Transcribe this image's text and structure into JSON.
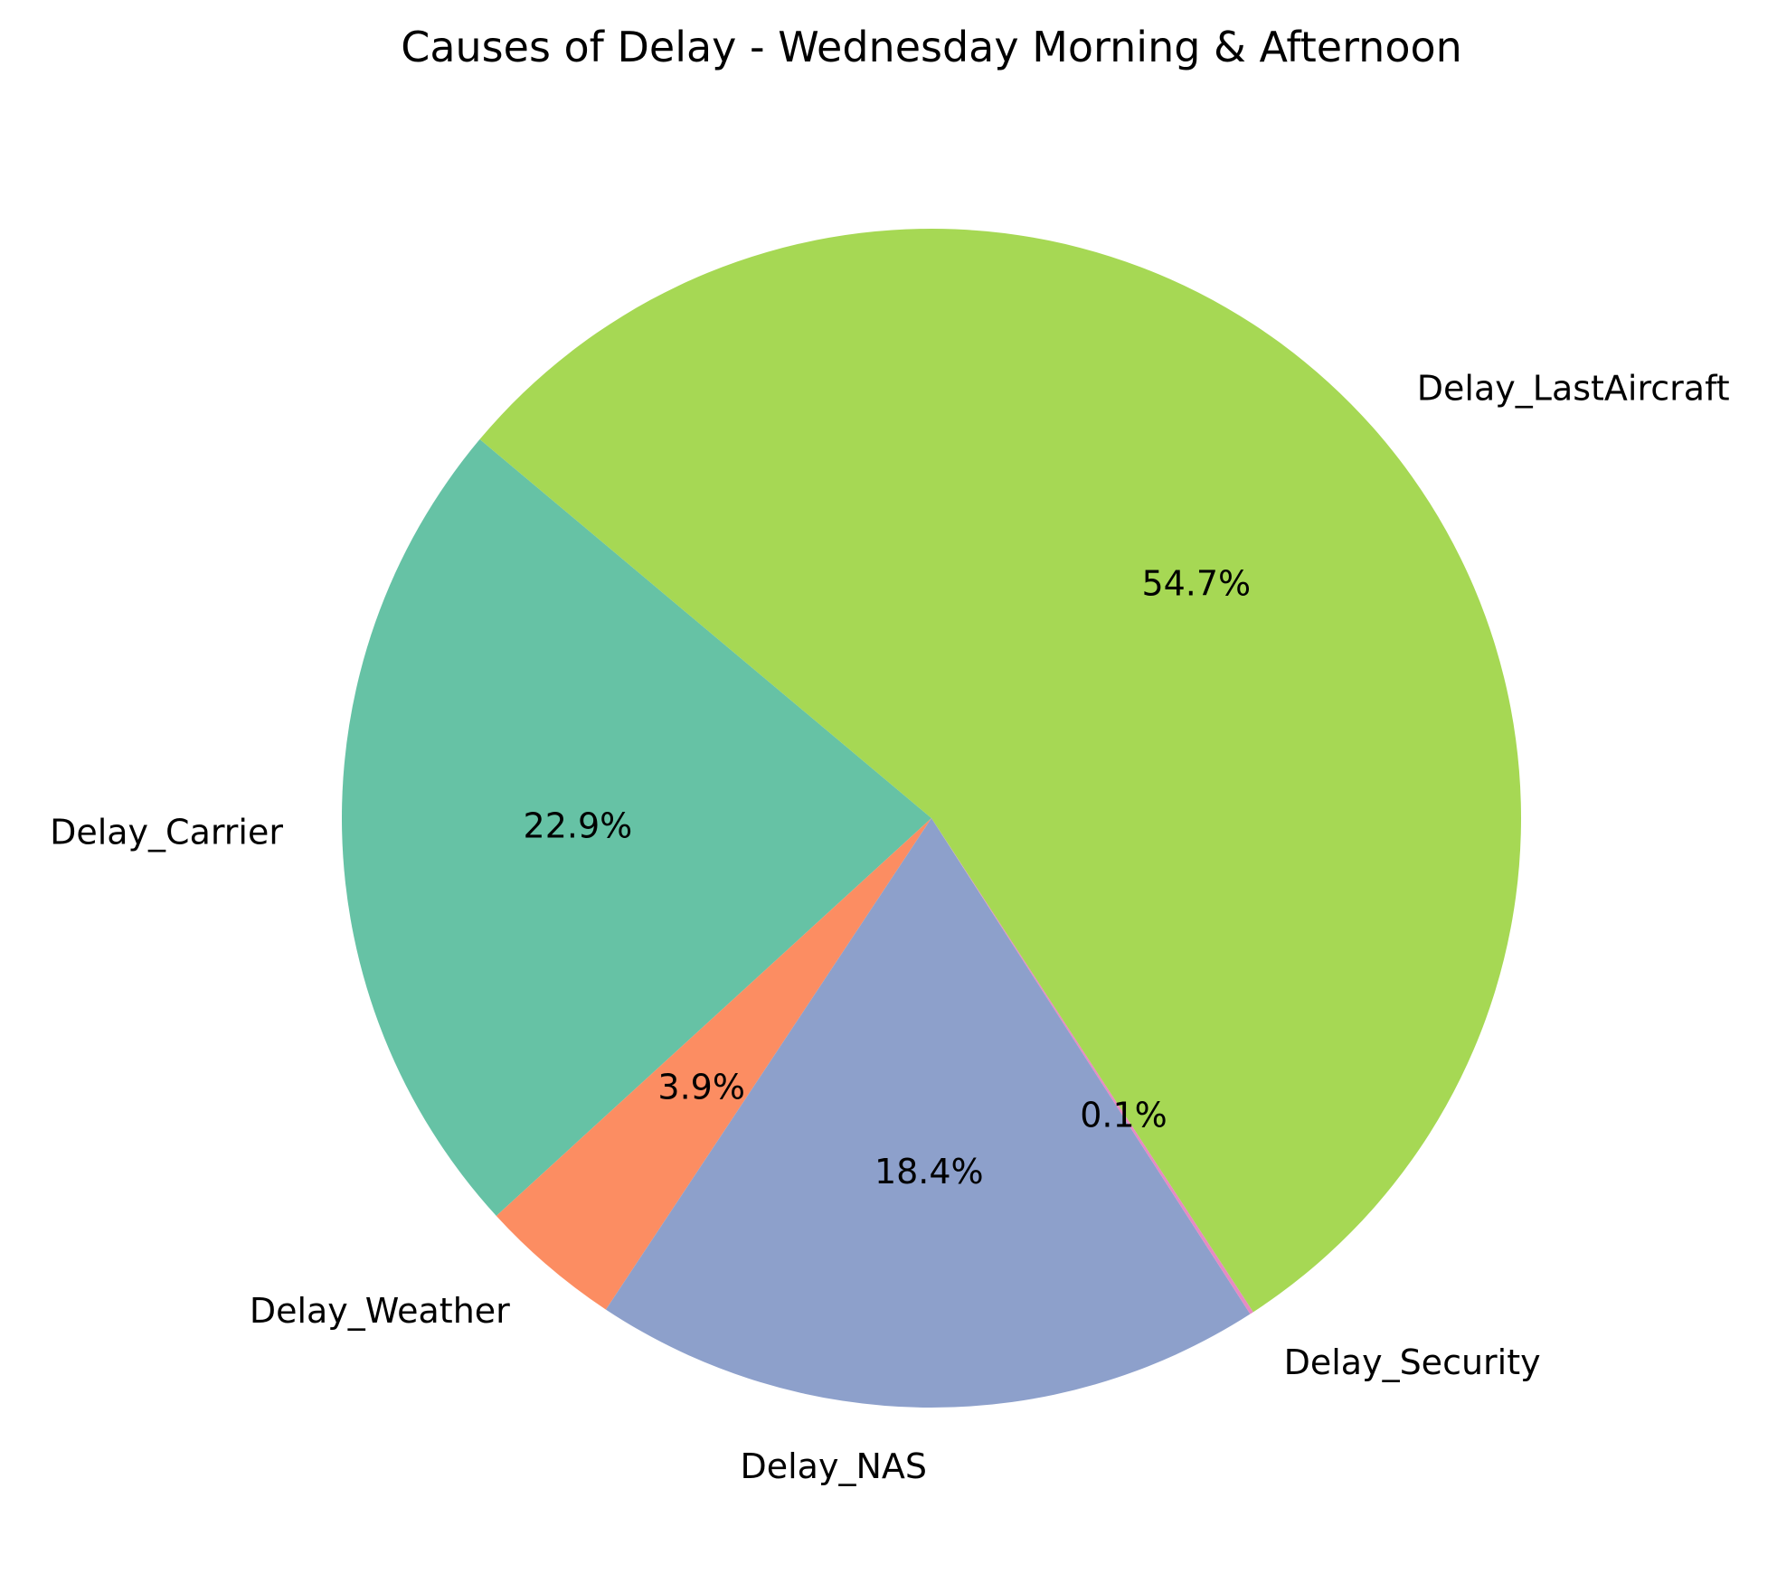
{
  "chart_data": {
    "type": "pie",
    "title": "Causes of Delay - Wednesday Morning & Afternoon",
    "categories": [
      "Delay_Carrier",
      "Delay_Weather",
      "Delay_NAS",
      "Delay_Security",
      "Delay_LastAircraft"
    ],
    "values": [
      22.9,
      3.9,
      18.4,
      0.1,
      54.7
    ],
    "value_labels": [
      "22.9%",
      "3.9%",
      "18.4%",
      "0.1%",
      "54.7%"
    ],
    "colors": [
      "#66c2a5",
      "#fc8d62",
      "#8da0cb",
      "#e78ac3",
      "#a6d854"
    ],
    "start_angle_deg": 140,
    "direction": "counterclockwise",
    "legend": "none",
    "grid": false
  }
}
